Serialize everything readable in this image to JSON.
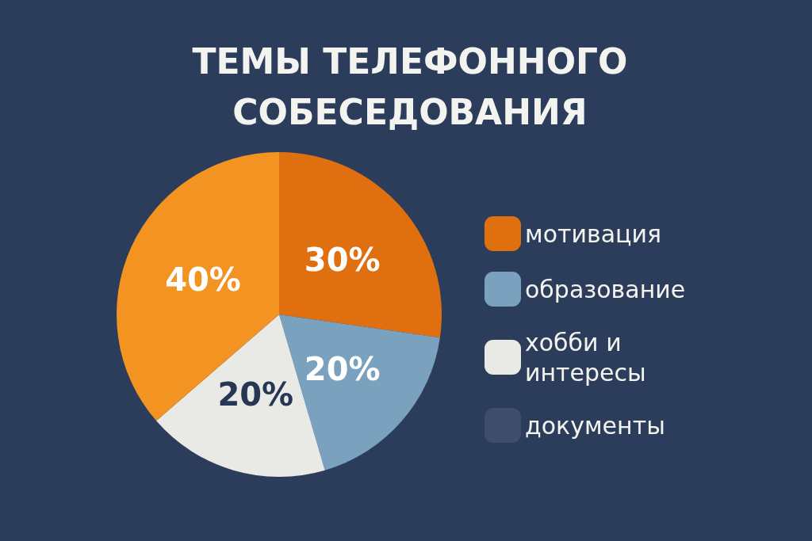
{
  "chart_data": {
    "type": "pie",
    "title": "ТЕМЫ ТЕЛЕФОННОГО СОБЕСЕДОВАНИЯ",
    "categories": [
      "мотивация",
      "образование",
      "хобби и интересы",
      "документы",
      null
    ],
    "values": [
      30,
      20,
      20,
      null,
      40
    ],
    "colors": [
      "#e0700f",
      "#7aa2be",
      "#e9e9e5",
      "#3e4e6a",
      "#f39321"
    ],
    "value_labels": [
      "30%",
      "20%",
      "20%",
      null,
      "40%"
    ],
    "legend": "right"
  }
}
